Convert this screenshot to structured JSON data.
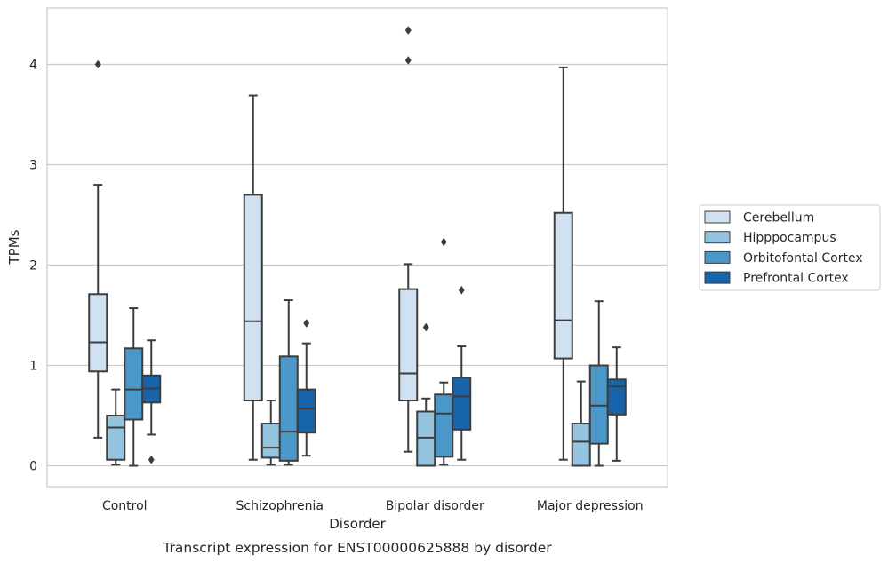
{
  "chart_data": {
    "type": "box",
    "caption": "Transcript expression for ENST00000625888 by disorder",
    "xlabel": "Disorder",
    "ylabel": "TPMs",
    "ylim": [
      -0.2,
      4.55
    ],
    "yticks": [
      0,
      1,
      2,
      3,
      4
    ],
    "grid": true,
    "legend_position": "right",
    "categories": [
      "Control",
      "Schizophrenia",
      "Bipolar disorder",
      "Major depression"
    ],
    "series": [
      {
        "name": "Cerebellum",
        "color": "#d0e1f2",
        "boxes": [
          {
            "whisker_low": 0.28,
            "q1": 0.94,
            "median": 1.23,
            "q3": 1.71,
            "whisker_high": 2.8,
            "outliers": [
              4.0
            ]
          },
          {
            "whisker_low": 0.06,
            "q1": 0.65,
            "median": 1.44,
            "q3": 2.7,
            "whisker_high": 3.69,
            "outliers": []
          },
          {
            "whisker_low": 0.14,
            "q1": 0.65,
            "median": 0.92,
            "q3": 1.76,
            "whisker_high": 2.01,
            "outliers": [
              4.04,
              4.34
            ]
          },
          {
            "whisker_low": 0.06,
            "q1": 1.07,
            "median": 1.45,
            "q3": 2.52,
            "whisker_high": 3.97,
            "outliers": []
          }
        ]
      },
      {
        "name": "Hipppocampus",
        "color": "#94c4df",
        "boxes": [
          {
            "whisker_low": 0.01,
            "q1": 0.06,
            "median": 0.38,
            "q3": 0.5,
            "whisker_high": 0.76,
            "outliers": []
          },
          {
            "whisker_low": 0.01,
            "q1": 0.08,
            "median": 0.18,
            "q3": 0.42,
            "whisker_high": 0.65,
            "outliers": []
          },
          {
            "whisker_low": 0.0,
            "q1": 0.0,
            "median": 0.28,
            "q3": 0.54,
            "whisker_high": 0.67,
            "outliers": [
              1.38
            ]
          },
          {
            "whisker_low": 0.0,
            "q1": 0.0,
            "median": 0.24,
            "q3": 0.42,
            "whisker_high": 0.84,
            "outliers": []
          }
        ]
      },
      {
        "name": "Orbitofontal Cortex",
        "color": "#4a98c9",
        "boxes": [
          {
            "whisker_low": 0.0,
            "q1": 0.46,
            "median": 0.76,
            "q3": 1.17,
            "whisker_high": 1.57,
            "outliers": []
          },
          {
            "whisker_low": 0.01,
            "q1": 0.05,
            "median": 0.34,
            "q3": 1.09,
            "whisker_high": 1.65,
            "outliers": []
          },
          {
            "whisker_low": 0.01,
            "q1": 0.09,
            "median": 0.52,
            "q3": 0.71,
            "whisker_high": 0.83,
            "outliers": [
              2.23
            ]
          },
          {
            "whisker_low": 0.0,
            "q1": 0.22,
            "median": 0.6,
            "q3": 1.0,
            "whisker_high": 1.64,
            "outliers": []
          }
        ]
      },
      {
        "name": "Prefrontal Cortex",
        "color": "#1764ab",
        "boxes": [
          {
            "whisker_low": 0.31,
            "q1": 0.63,
            "median": 0.77,
            "q3": 0.9,
            "whisker_high": 1.25,
            "outliers": [
              0.06
            ]
          },
          {
            "whisker_low": 0.1,
            "q1": 0.33,
            "median": 0.57,
            "q3": 0.76,
            "whisker_high": 1.22,
            "outliers": [
              1.42
            ]
          },
          {
            "whisker_low": 0.06,
            "q1": 0.36,
            "median": 0.69,
            "q3": 0.88,
            "whisker_high": 1.19,
            "outliers": [
              1.75
            ]
          },
          {
            "whisker_low": 0.05,
            "q1": 0.51,
            "median": 0.79,
            "q3": 0.86,
            "whisker_high": 1.18,
            "outliers": []
          }
        ]
      }
    ]
  }
}
